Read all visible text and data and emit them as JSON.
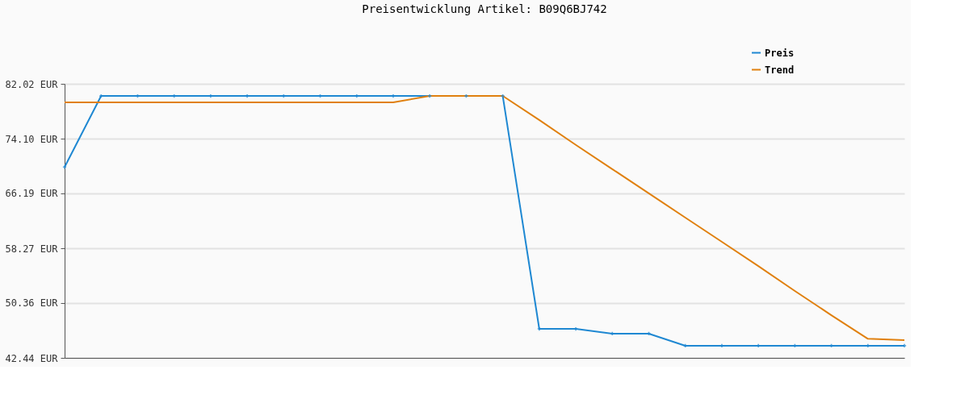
{
  "chart_data": {
    "type": "line",
    "title": "Preisentwicklung Artikel: B09Q6BJ742",
    "categories": [
      null,
      null,
      null,
      null,
      null,
      null,
      null,
      null,
      null,
      null,
      null,
      null,
      null,
      null,
      null,
      null,
      null,
      null,
      null,
      null,
      null,
      null,
      null,
      null
    ],
    "series": [
      {
        "name": "Preis",
        "color": "#1f88d2",
        "marker": "cross",
        "values": [
          70.0,
          80.27,
          80.27,
          80.27,
          80.27,
          80.27,
          80.27,
          80.27,
          80.27,
          80.27,
          80.27,
          80.27,
          80.27,
          46.63,
          46.63,
          45.94,
          45.94,
          44.19,
          44.19,
          44.19,
          44.19,
          44.19,
          44.19,
          44.19
        ]
      },
      {
        "name": "Trend",
        "color": "#e0800f",
        "marker": "none",
        "values": [
          79.33,
          79.33,
          79.33,
          79.33,
          79.33,
          79.33,
          79.33,
          79.33,
          79.33,
          79.33,
          80.27,
          80.27,
          80.27,
          76.8,
          73.2,
          69.7,
          66.2,
          62.7,
          59.2,
          55.7,
          52.1,
          48.6,
          45.2,
          45.0
        ]
      }
    ],
    "ylim": [
      42.44,
      82.02
    ],
    "yticks": [
      {
        "value": 42.44,
        "label": "42.44 EUR"
      },
      {
        "value": 50.36,
        "label": "50.36 EUR"
      },
      {
        "value": 58.27,
        "label": "58.27 EUR"
      },
      {
        "value": 66.19,
        "label": "66.19 EUR"
      },
      {
        "value": 74.1,
        "label": "74.10 EUR"
      },
      {
        "value": 82.02,
        "label": "82.02 EUR"
      }
    ],
    "grid": "y",
    "legend": "top right",
    "tick_labels": "y"
  }
}
